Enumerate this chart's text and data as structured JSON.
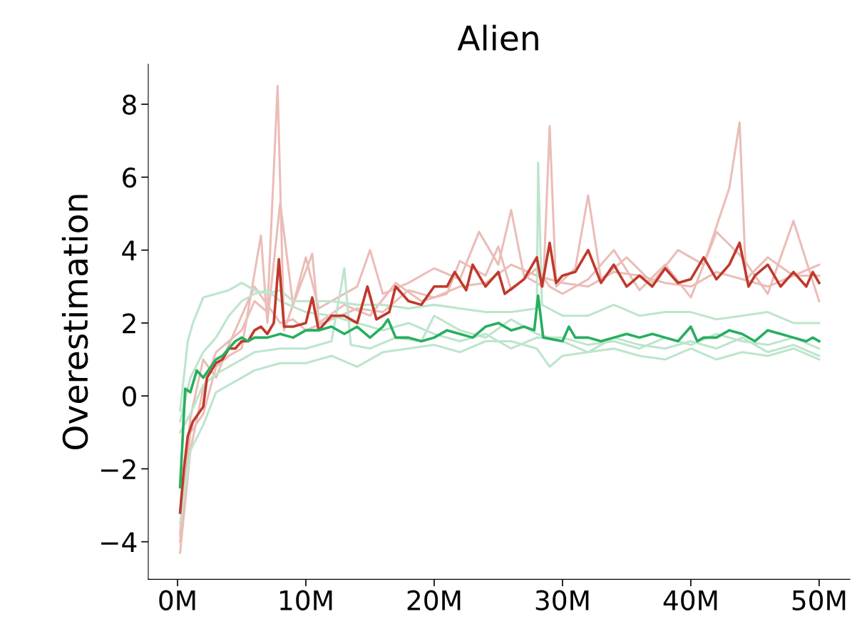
{
  "chart_data": {
    "type": "line",
    "title": "Alien",
    "ylabel": "Overestimation",
    "xlim": [
      -2.28,
      52.4
    ],
    "ylim": [
      -5.03,
      9.1
    ],
    "xticks": [
      {
        "value": 0,
        "label": "0M"
      },
      {
        "value": 10,
        "label": "10M"
      },
      {
        "value": 20,
        "label": "20M"
      },
      {
        "value": 30,
        "label": "30M"
      },
      {
        "value": 40,
        "label": "40M"
      },
      {
        "value": 50,
        "label": "50M"
      }
    ],
    "yticks": [
      {
        "value": -4,
        "label": "−4"
      },
      {
        "value": -2,
        "label": "−2"
      },
      0,
      2,
      4,
      6,
      8
    ],
    "grid": false,
    "marker": "none",
    "line_style": "solid",
    "series": [
      {
        "color": "#ebbdb8",
        "x": [
          0.2,
          1,
          2,
          3,
          4,
          5,
          6,
          7,
          7.8,
          8.3,
          9,
          10,
          11,
          12,
          14,
          15,
          16,
          18,
          20,
          22,
          23.5,
          25,
          26,
          27,
          28.5,
          29,
          29.5,
          31,
          32,
          33,
          35,
          37,
          39,
          41,
          43,
          43.8,
          44.3,
          46,
          48,
          50
        ],
        "values": [
          -4.3,
          -1.5,
          0.2,
          1.2,
          1.5,
          1.8,
          2.6,
          2.3,
          8.5,
          1.8,
          2.5,
          3.8,
          2.4,
          2.6,
          3.0,
          4.0,
          2.8,
          3.1,
          3.5,
          3.2,
          4.5,
          3.6,
          5.1,
          3.3,
          3.0,
          7.4,
          3.0,
          3.5,
          5.5,
          3.2,
          3.8,
          3.1,
          4.0,
          3.6,
          5.7,
          7.5,
          3.2,
          3.8,
          3.3,
          3.6
        ]
      },
      {
        "color": "#ebbdb8",
        "x": [
          0.2,
          1,
          2,
          3,
          4,
          5,
          6.5,
          7,
          8,
          9,
          10.5,
          11,
          13,
          15,
          17,
          19,
          21,
          22,
          24,
          25,
          26,
          28,
          29,
          30,
          32,
          34,
          36,
          38,
          40,
          42,
          44,
          46,
          48,
          50
        ],
        "values": [
          -4.0,
          -1.0,
          -0.5,
          0.8,
          1.1,
          1.3,
          4.4,
          2.0,
          5.3,
          2.5,
          3.9,
          2.0,
          2.5,
          2.2,
          3.1,
          2.6,
          2.8,
          3.7,
          3.3,
          4.1,
          2.9,
          3.5,
          3.0,
          2.8,
          3.2,
          4.0,
          2.9,
          3.6,
          2.7,
          4.5,
          3.8,
          2.8,
          4.8,
          2.6
        ]
      },
      {
        "color": "#ebbdb8",
        "x": [
          0.2,
          1,
          2,
          3,
          4,
          5,
          6,
          7,
          8,
          9,
          10,
          12,
          14,
          16,
          18,
          20,
          22,
          24,
          26,
          28,
          30,
          32,
          34,
          36,
          38,
          40,
          42,
          44,
          46,
          48,
          50
        ],
        "values": [
          -3.8,
          -0.6,
          1.0,
          0.5,
          1.4,
          2.2,
          3.0,
          2.5,
          2.0,
          2.1,
          1.8,
          2.1,
          2.4,
          2.3,
          2.9,
          2.7,
          3.0,
          3.1,
          3.6,
          3.3,
          3.1,
          3.0,
          3.4,
          3.3,
          3.1,
          3.0,
          3.4,
          3.2,
          3.0,
          3.3,
          3.3
        ]
      },
      {
        "color": "#bde5cc",
        "x": [
          0.2,
          0.8,
          1.2,
          2,
          3,
          4,
          5,
          6,
          7,
          8,
          9,
          10,
          12,
          14,
          16,
          18,
          20,
          22,
          24,
          26,
          28,
          28.1,
          28.4,
          30,
          32,
          34,
          36,
          38,
          40,
          42,
          44,
          46,
          48,
          50
        ],
        "values": [
          -0.4,
          1.5,
          2.0,
          2.7,
          2.8,
          2.9,
          3.1,
          2.9,
          2.8,
          2.9,
          2.6,
          2.6,
          2.6,
          2.5,
          2.5,
          2.4,
          2.5,
          2.4,
          2.3,
          2.3,
          2.4,
          6.4,
          2.5,
          2.2,
          2.2,
          2.5,
          2.2,
          2.3,
          2.3,
          2.1,
          2.2,
          2.3,
          2.0,
          2.0
        ]
      },
      {
        "color": "#bde5cc",
        "x": [
          0.2,
          1,
          2,
          3,
          4,
          5,
          6,
          8,
          10,
          12,
          13,
          13.5,
          15,
          17,
          19,
          20,
          22,
          24,
          26,
          28,
          30,
          32,
          34,
          36,
          38,
          40,
          42,
          44,
          46,
          48,
          50
        ],
        "values": [
          -1.0,
          -0.5,
          0.3,
          0.6,
          0.8,
          1.0,
          1.2,
          1.3,
          1.3,
          1.5,
          3.5,
          1.4,
          1.3,
          1.6,
          1.5,
          2.2,
          1.8,
          1.6,
          2.1,
          1.7,
          1.5,
          1.2,
          1.6,
          1.4,
          1.3,
          1.5,
          1.3,
          1.6,
          1.2,
          1.4,
          1.1
        ]
      },
      {
        "color": "#bde5cc",
        "x": [
          0.2,
          1,
          2,
          3,
          4,
          5,
          6,
          8,
          10,
          12,
          14,
          16,
          18,
          20,
          22,
          24,
          26,
          28,
          29,
          30,
          32,
          34,
          36,
          38,
          40,
          42,
          44,
          46,
          48,
          50
        ],
        "values": [
          -3.5,
          -1.5,
          -0.8,
          0.1,
          0.3,
          0.5,
          0.7,
          0.9,
          0.9,
          1.1,
          0.8,
          1.2,
          1.3,
          1.4,
          1.2,
          1.5,
          1.5,
          1.3,
          0.8,
          1.1,
          1.2,
          1.3,
          1.1,
          1.0,
          1.3,
          1.0,
          1.2,
          1.1,
          1.3,
          1.0
        ]
      },
      {
        "color": "#bde5cc",
        "x": [
          0.2,
          1,
          2,
          3,
          4,
          5,
          6,
          7,
          8,
          10,
          12,
          14,
          16,
          18,
          20,
          22,
          24,
          26,
          28,
          30,
          32,
          34,
          36,
          38,
          40,
          42,
          44,
          46,
          48,
          50
        ],
        "values": [
          -0.7,
          0.5,
          1.2,
          1.6,
          2.2,
          2.6,
          2.8,
          2.9,
          2.6,
          2.3,
          2.2,
          2.0,
          1.8,
          2.0,
          1.7,
          1.5,
          1.7,
          1.3,
          1.6,
          1.6,
          1.4,
          1.5,
          1.3,
          1.6,
          1.4,
          1.7,
          1.5,
          1.4,
          1.6,
          1.3
        ]
      },
      {
        "color": "#c0392b",
        "x": [
          0.2,
          0.5,
          0.8,
          1.2,
          1.6,
          2.0,
          2.3,
          3.0,
          3.5,
          4,
          4.5,
          5,
          5.5,
          6,
          6.5,
          7,
          7.5,
          7.9,
          8.3,
          9,
          10,
          10.5,
          11,
          12,
          13,
          14,
          14.8,
          15.5,
          16.5,
          17,
          18,
          19,
          20,
          21,
          21.6,
          22.5,
          23,
          24,
          25,
          25.5,
          27,
          28,
          28.4,
          29,
          29.5,
          30,
          31,
          32,
          33,
          34,
          35,
          36,
          37,
          38,
          39,
          40,
          41,
          42,
          43,
          43.8,
          44.5,
          45,
          46,
          47,
          48,
          49,
          49.5,
          50
        ],
        "values": [
          -3.2,
          -2.0,
          -1.1,
          -0.7,
          -0.5,
          -0.3,
          0.5,
          0.9,
          1.0,
          1.3,
          1.3,
          1.5,
          1.5,
          1.8,
          1.9,
          1.7,
          2.0,
          3.75,
          1.9,
          1.9,
          2.0,
          2.7,
          1.8,
          2.2,
          2.2,
          2.0,
          3.0,
          2.1,
          2.3,
          3.0,
          2.6,
          2.5,
          3.0,
          3.0,
          3.4,
          2.9,
          3.6,
          3.0,
          3.4,
          2.8,
          3.2,
          3.8,
          3.0,
          4.2,
          3.1,
          3.3,
          3.4,
          4.0,
          3.1,
          3.6,
          3.0,
          3.3,
          3.0,
          3.5,
          3.1,
          3.2,
          3.8,
          3.2,
          3.6,
          4.2,
          3.0,
          3.3,
          3.6,
          3.0,
          3.4,
          3.0,
          3.4,
          3.1
        ]
      },
      {
        "color": "#27ae60",
        "x": [
          0.2,
          0.6,
          1.0,
          1.5,
          2.0,
          3,
          3.5,
          4,
          4.5,
          5,
          5.5,
          6,
          7,
          8,
          9,
          10,
          11,
          12,
          13,
          14,
          15,
          16,
          16.4,
          17,
          18,
          19,
          20,
          21,
          22,
          23,
          24,
          25,
          26,
          27,
          27.8,
          28.1,
          28.5,
          30,
          30.5,
          31,
          32,
          33,
          34,
          35,
          36,
          37,
          38,
          39,
          40,
          40.5,
          41,
          42,
          43,
          44,
          45,
          46,
          47,
          48,
          49,
          49.5,
          50
        ],
        "values": [
          -2.5,
          0.2,
          0.1,
          0.7,
          0.5,
          1.0,
          1.1,
          1.3,
          1.5,
          1.6,
          1.5,
          1.6,
          1.6,
          1.7,
          1.6,
          1.8,
          1.8,
          1.9,
          1.7,
          1.9,
          1.6,
          1.9,
          2.1,
          1.6,
          1.6,
          1.5,
          1.6,
          1.8,
          1.7,
          1.6,
          1.9,
          2.0,
          1.8,
          1.9,
          1.8,
          2.75,
          1.6,
          1.5,
          1.9,
          1.6,
          1.6,
          1.5,
          1.6,
          1.7,
          1.6,
          1.7,
          1.6,
          1.5,
          1.9,
          1.5,
          1.6,
          1.6,
          1.8,
          1.7,
          1.5,
          1.8,
          1.7,
          1.6,
          1.5,
          1.6,
          1.5
        ]
      }
    ]
  }
}
